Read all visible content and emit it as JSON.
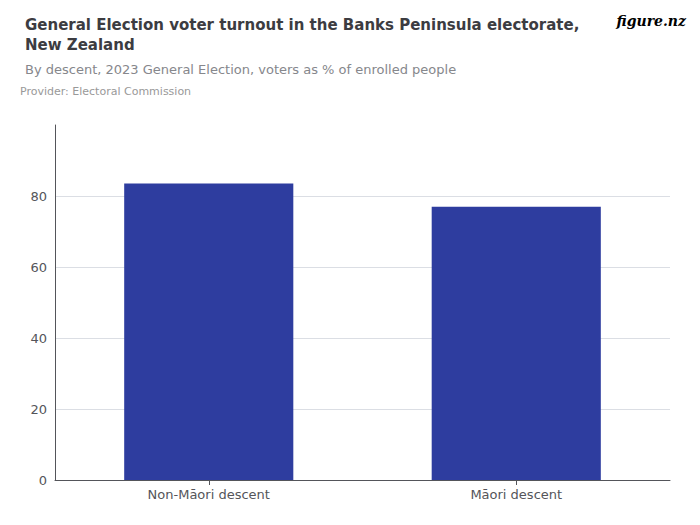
{
  "chart_data": {
    "type": "bar",
    "title": "General Election voter turnout in the Banks Peninsula electorate,\nNew Zealand",
    "subtitle": "By descent, 2023 General Election, voters as % of enrolled people",
    "annotations": [
      "Provider: Electoral Commission",
      "figure.nz"
    ],
    "categories": [
      "Non-Māori descent",
      "Māori descent"
    ],
    "values": [
      83.5,
      77.0
    ],
    "color": "#2e3d9f",
    "ylim": [
      0,
      100
    ],
    "yticks": [
      0,
      20,
      40,
      60,
      80
    ],
    "grid": true
  }
}
